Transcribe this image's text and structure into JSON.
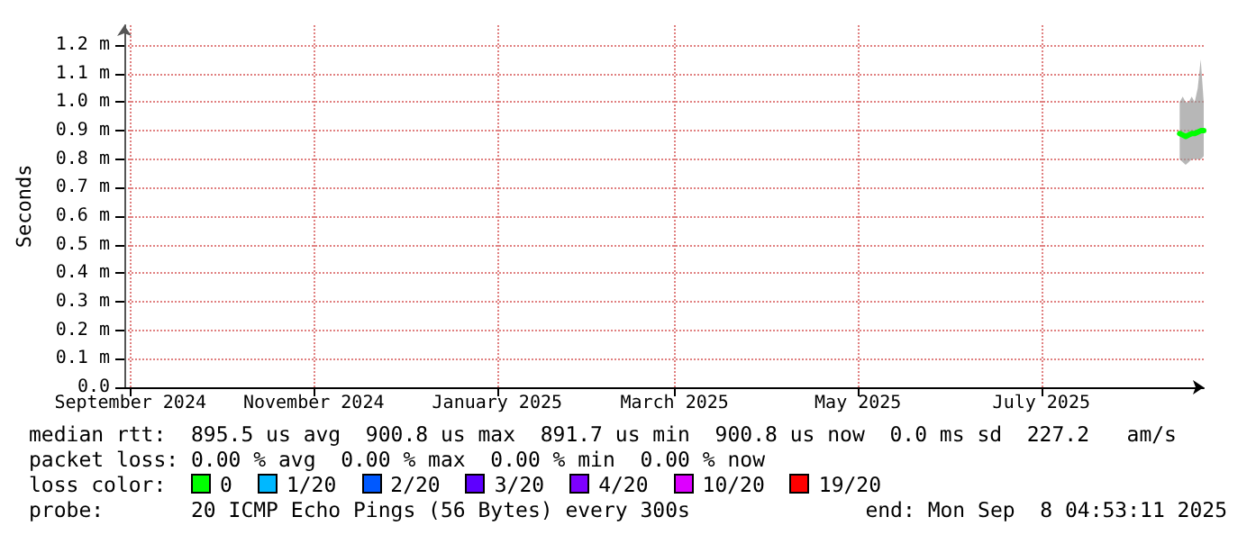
{
  "chart_data": {
    "type": "line",
    "ylabel": "Seconds",
    "x": [
      "2025-08-31",
      "2025-09-01",
      "2025-09-02",
      "2025-09-03",
      "2025-09-04",
      "2025-09-05",
      "2025-09-06",
      "2025-09-07",
      "2025-09-08"
    ],
    "series": [
      {
        "color": "#00ff00",
        "values": [
          0.89,
          0.885,
          0.88,
          0.885,
          0.89,
          0.89,
          0.895,
          0.9,
          0.9
        ],
        "lower": [
          0.8,
          0.79,
          0.78,
          0.79,
          0.8,
          0.8,
          0.8,
          0.8,
          0.81
        ],
        "upper": [
          1.0,
          1.02,
          1.0,
          1.0,
          1.02,
          1.0,
          1.05,
          1.15,
          1.0
        ]
      }
    ],
    "xlim": [
      "2024-09-14",
      "2025-09-08"
    ],
    "xticks": [
      {
        "value": "2024-09-16",
        "label": "September 2024"
      },
      {
        "value": "2024-11-16",
        "label": "November 2024"
      },
      {
        "value": "2025-01-16",
        "label": "January 2025"
      },
      {
        "value": "2025-03-16",
        "label": "March 2025"
      },
      {
        "value": "2025-05-16",
        "label": "May 2025"
      },
      {
        "value": "2025-07-16",
        "label": "July 2025"
      }
    ],
    "ylim": [
      0,
      1.27
    ],
    "yticks": [
      {
        "value": 0,
        "label": "0.0"
      },
      {
        "value": 0.1,
        "label": "0.1 m"
      },
      {
        "value": 0.2,
        "label": "0.2 m"
      },
      {
        "value": 0.3,
        "label": "0.3 m"
      },
      {
        "value": 0.4,
        "label": "0.4 m"
      },
      {
        "value": 0.5,
        "label": "0.5 m"
      },
      {
        "value": 0.6,
        "label": "0.6 m"
      },
      {
        "value": 0.7,
        "label": "0.7 m"
      },
      {
        "value": 0.8,
        "label": "0.8 m"
      },
      {
        "value": 0.9,
        "label": "0.9 m"
      },
      {
        "value": 1.0,
        "label": "1.0 m"
      },
      {
        "value": 1.1,
        "label": "1.1 m"
      },
      {
        "value": 1.2,
        "label": "1.2 m"
      }
    ],
    "grid": true,
    "marker": "none",
    "line_style": "solid",
    "annotations": [
      "median rtt:  895.5 us avg  900.8 us max  891.7 us min  900.8 us now  0.0 ms sd  227.2   am/s",
      "packet loss: 0.00 % avg  0.00 % max  0.00 % min  0.00 % now",
      "loss color:",
      "0",
      "1/20",
      "2/20",
      "3/20",
      "4/20",
      "10/20",
      "19/20",
      "probe:       20 ICMP Echo Pings (56 Bytes) every 300s",
      "end: Mon Sep  8 04:53:11 2025"
    ]
  }
}
